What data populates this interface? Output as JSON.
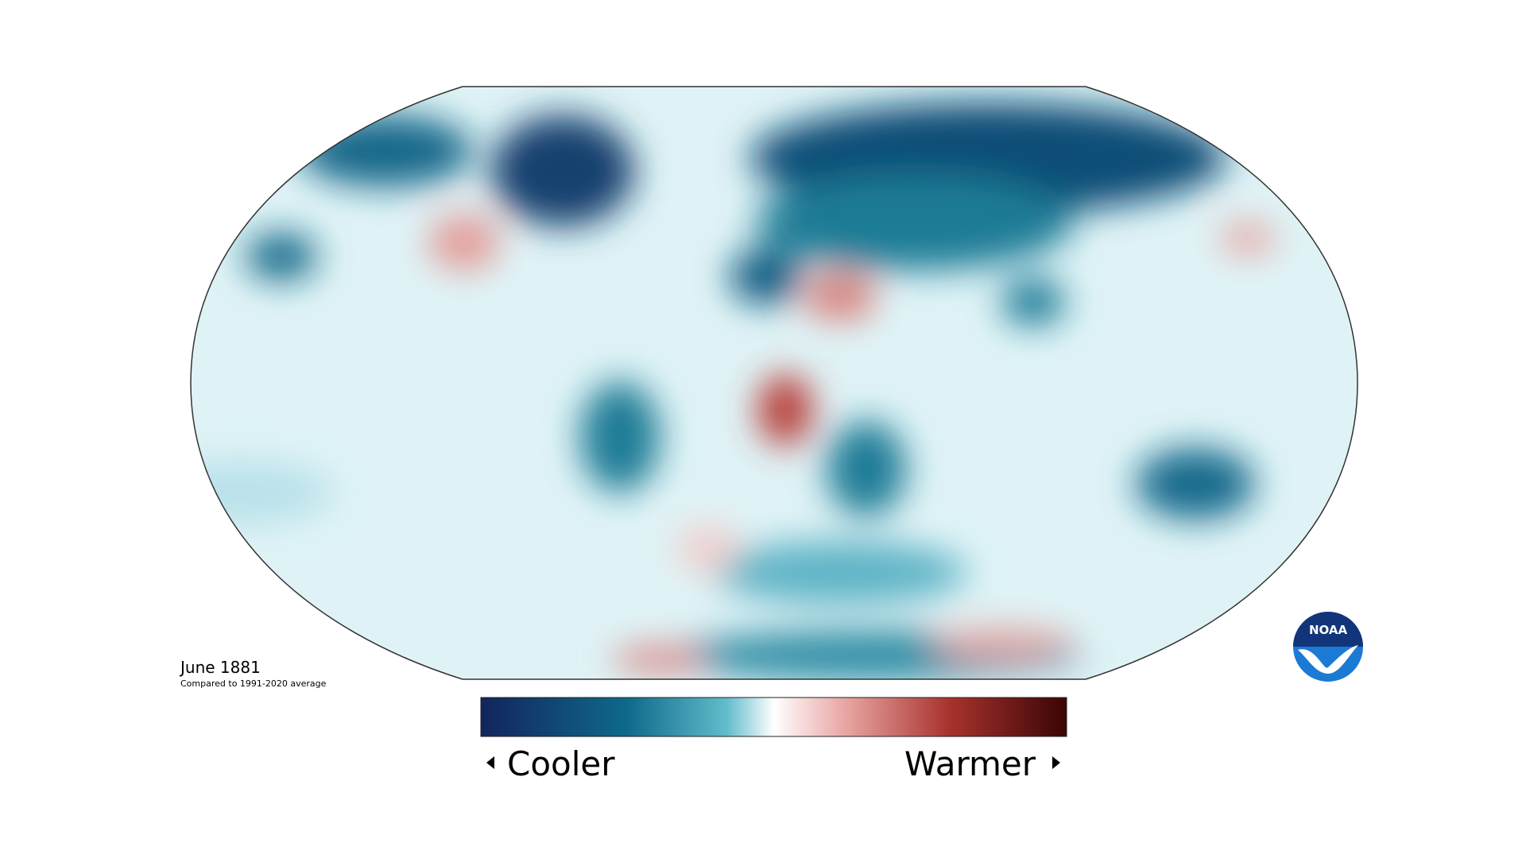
{
  "map": {
    "title": "June 1881",
    "subtitle": "Compared to 1991-2020 average",
    "legend": {
      "low_label": "Cooler",
      "high_label": "Warmer"
    },
    "logo": "NOAA"
  }
}
